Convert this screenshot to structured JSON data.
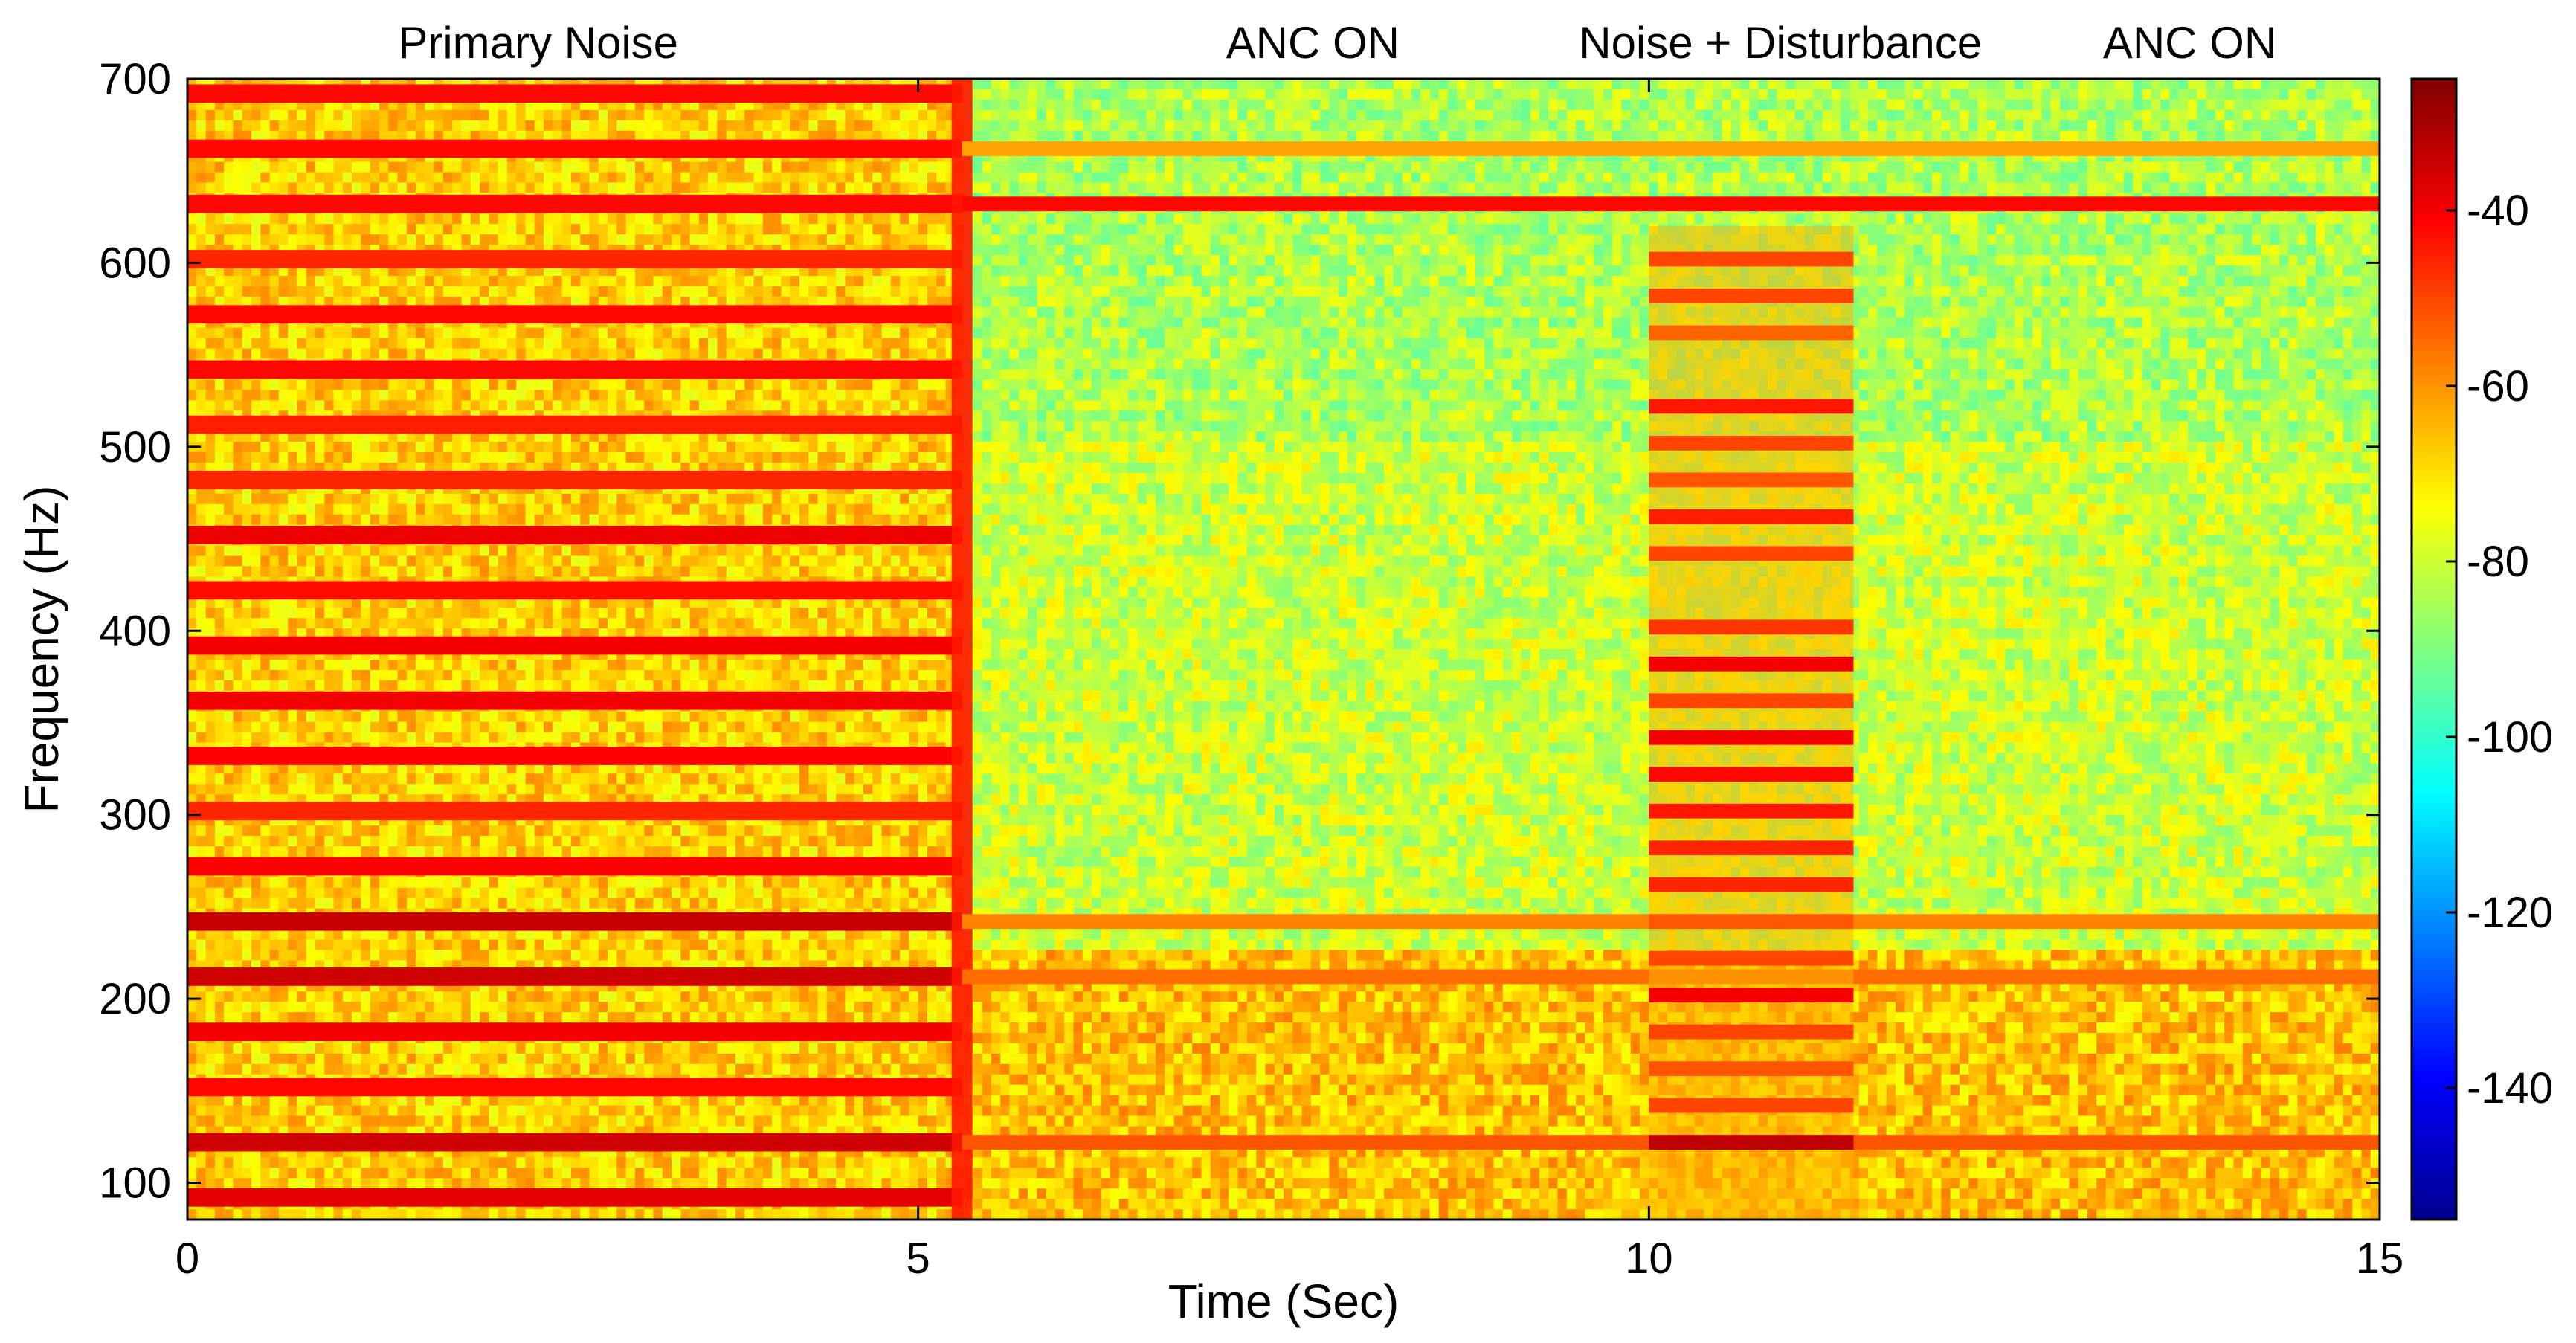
{
  "chart_data": {
    "type": "heatmap",
    "subtype": "spectrogram",
    "xlabel": "Time (Sec)",
    "ylabel": "Frequency (Hz)",
    "xlim": [
      0,
      15
    ],
    "ylim": [
      80,
      700
    ],
    "x_ticks": [
      0,
      5,
      10,
      15
    ],
    "y_ticks": [
      100,
      200,
      300,
      400,
      500,
      600,
      700
    ],
    "colorbar": {
      "range": [
        -155,
        -25
      ],
      "ticks": [
        -40,
        -60,
        -80,
        -100,
        -120,
        -140
      ],
      "colormap": "jet"
    },
    "annotations": [
      {
        "text": "Primary Noise",
        "x": 2.4
      },
      {
        "text": "ANC ON",
        "x": 7.7
      },
      {
        "text": "Noise + Disturbance",
        "x": 10.9
      },
      {
        "text": "ANC ON",
        "x": 13.7
      }
    ],
    "segments": [
      {
        "start": 0,
        "end": 5.3,
        "background_level": -68
      },
      {
        "start": 5.3,
        "end": 15,
        "background_level": -80
      }
    ],
    "primary_tones": [
      {
        "freq": 92,
        "level": -38
      },
      {
        "freq": 122,
        "level": -35
      },
      {
        "freq": 152,
        "level": -42
      },
      {
        "freq": 182,
        "level": -40
      },
      {
        "freq": 212,
        "level": -35
      },
      {
        "freq": 242,
        "level": -34
      },
      {
        "freq": 272,
        "level": -41
      },
      {
        "freq": 302,
        "level": -46
      },
      {
        "freq": 332,
        "level": -41
      },
      {
        "freq": 362,
        "level": -40
      },
      {
        "freq": 392,
        "level": -40
      },
      {
        "freq": 422,
        "level": -43
      },
      {
        "freq": 452,
        "level": -39
      },
      {
        "freq": 482,
        "level": -46
      },
      {
        "freq": 512,
        "level": -45
      },
      {
        "freq": 542,
        "level": -42
      },
      {
        "freq": 572,
        "level": -42
      },
      {
        "freq": 602,
        "level": -46
      },
      {
        "freq": 632,
        "level": -42
      },
      {
        "freq": 662,
        "level": -42
      },
      {
        "freq": 692,
        "level": -42
      }
    ],
    "persistent_tones": [
      {
        "freq": 632,
        "start": 5.3,
        "end": 15,
        "level": -42
      },
      {
        "freq": 122,
        "start": 5.3,
        "end": 15,
        "level": -52
      },
      {
        "freq": 242,
        "start": 5.3,
        "end": 15,
        "level": -58
      },
      {
        "freq": 662,
        "start": 5.3,
        "end": 15,
        "level": -62
      },
      {
        "freq": 212,
        "start": 5.3,
        "end": 15,
        "level": -55
      }
    ],
    "low_band_after_anc": {
      "freq_min": 80,
      "freq_max": 225,
      "level": -58
    },
    "disturbance": {
      "start": 10.0,
      "end": 11.4,
      "tones": [
        {
          "freq": 122,
          "level": -33
        },
        {
          "freq": 142,
          "level": -50
        },
        {
          "freq": 162,
          "level": -52
        },
        {
          "freq": 182,
          "level": -50
        },
        {
          "freq": 202,
          "level": -40
        },
        {
          "freq": 222,
          "level": -50
        },
        {
          "freq": 242,
          "level": -52
        },
        {
          "freq": 262,
          "level": -46
        },
        {
          "freq": 282,
          "level": -46
        },
        {
          "freq": 302,
          "level": -44
        },
        {
          "freq": 322,
          "level": -42
        },
        {
          "freq": 342,
          "level": -40
        },
        {
          "freq": 362,
          "level": -50
        },
        {
          "freq": 382,
          "level": -40
        },
        {
          "freq": 402,
          "level": -48
        },
        {
          "freq": 442,
          "level": -50
        },
        {
          "freq": 462,
          "level": -45
        },
        {
          "freq": 482,
          "level": -52
        },
        {
          "freq": 502,
          "level": -50
        },
        {
          "freq": 522,
          "level": -44
        },
        {
          "freq": 562,
          "level": -54
        },
        {
          "freq": 582,
          "level": -50
        },
        {
          "freq": 602,
          "level": -50
        }
      ]
    }
  }
}
